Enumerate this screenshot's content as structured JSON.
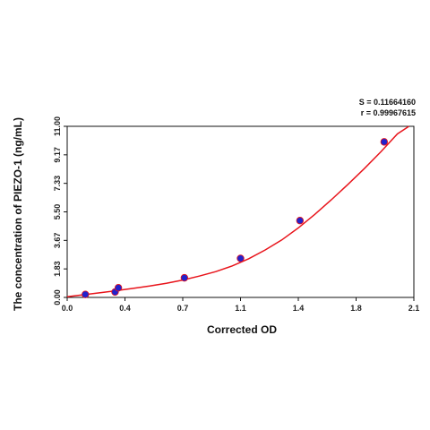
{
  "chart_data": {
    "type": "scatter",
    "xlabel": "Corrected OD",
    "ylabel": "The concentration of PIEZO-1 (ng/mL)",
    "xlim": [
      0.0,
      2.1
    ],
    "ylim": [
      0.0,
      11.0
    ],
    "x_ticks": [
      "0.0",
      "0.4",
      "0.7",
      "1.1",
      "1.4",
      "1.8",
      "2.1"
    ],
    "y_ticks": [
      "0.00",
      "1.83",
      "3.67",
      "5.50",
      "7.33",
      "9.17",
      "11.00"
    ],
    "grid": false,
    "stats": {
      "s_label": "S = 0.11664160",
      "r_label": "r = 0.99967615"
    },
    "points": [
      {
        "x": 0.11,
        "y": 0.19
      },
      {
        "x": 0.29,
        "y": 0.35
      },
      {
        "x": 0.31,
        "y": 0.62
      },
      {
        "x": 0.71,
        "y": 1.26
      },
      {
        "x": 1.05,
        "y": 2.51
      },
      {
        "x": 1.41,
        "y": 4.94
      },
      {
        "x": 1.92,
        "y": 10.0
      }
    ],
    "curve": [
      {
        "x": 0.0,
        "y": 0.04
      },
      {
        "x": 0.1,
        "y": 0.17
      },
      {
        "x": 0.2,
        "y": 0.3
      },
      {
        "x": 0.3,
        "y": 0.44
      },
      {
        "x": 0.4,
        "y": 0.58
      },
      {
        "x": 0.5,
        "y": 0.73
      },
      {
        "x": 0.6,
        "y": 0.91
      },
      {
        "x": 0.7,
        "y": 1.12
      },
      {
        "x": 0.8,
        "y": 1.37
      },
      {
        "x": 0.9,
        "y": 1.66
      },
      {
        "x": 1.0,
        "y": 2.03
      },
      {
        "x": 1.1,
        "y": 2.49
      },
      {
        "x": 1.2,
        "y": 3.05
      },
      {
        "x": 1.3,
        "y": 3.7
      },
      {
        "x": 1.4,
        "y": 4.47
      },
      {
        "x": 1.5,
        "y": 5.34
      },
      {
        "x": 1.6,
        "y": 6.28
      },
      {
        "x": 1.7,
        "y": 7.26
      },
      {
        "x": 1.8,
        "y": 8.28
      },
      {
        "x": 1.9,
        "y": 9.36
      },
      {
        "x": 2.0,
        "y": 10.51
      },
      {
        "x": 2.07,
        "y": 11.0
      }
    ],
    "colors": {
      "curve": "#e8141b",
      "point": "#2222cc",
      "axis": "#111111"
    }
  }
}
